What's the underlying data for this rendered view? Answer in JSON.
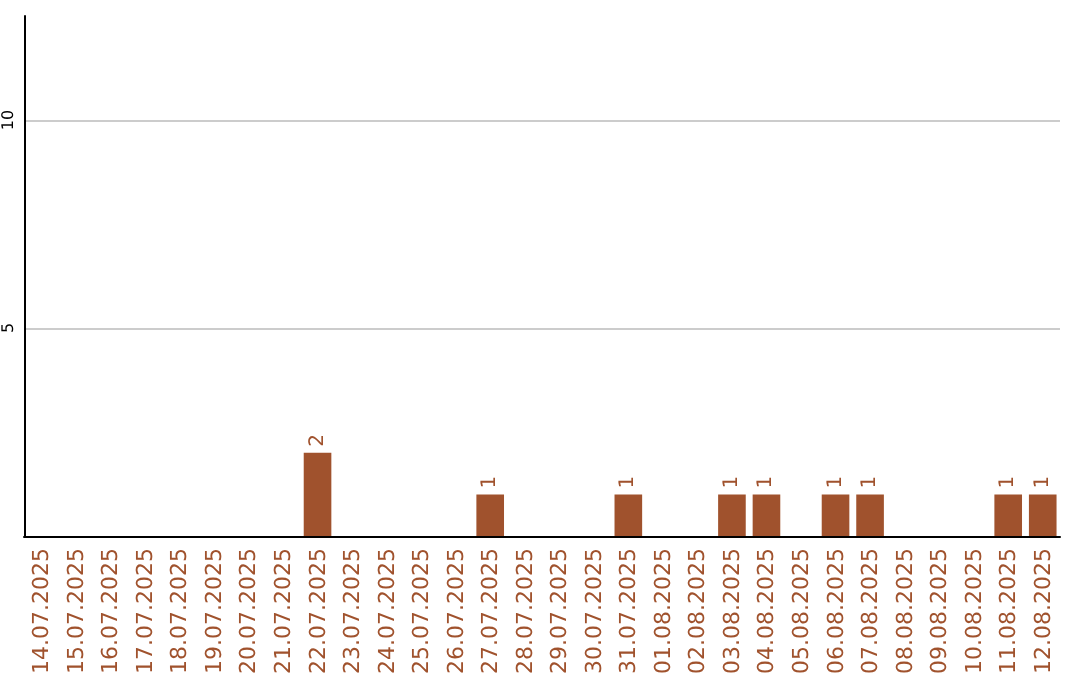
{
  "chart_data": {
    "type": "bar",
    "categories": [
      "14.07.2025",
      "15.07.2025",
      "16.07.2025",
      "17.07.2025",
      "18.07.2025",
      "19.07.2025",
      "20.07.2025",
      "21.07.2025",
      "22.07.2025",
      "23.07.2025",
      "24.07.2025",
      "25.07.2025",
      "26.07.2025",
      "27.07.2025",
      "28.07.2025",
      "29.07.2025",
      "30.07.2025",
      "31.07.2025",
      "01.08.2025",
      "02.08.2025",
      "03.08.2025",
      "04.08.2025",
      "05.08.2025",
      "06.08.2025",
      "07.08.2025",
      "08.08.2025",
      "09.08.2025",
      "10.08.2025",
      "11.08.2025",
      "12.08.2025"
    ],
    "values": [
      0,
      0,
      0,
      0,
      0,
      0,
      0,
      0,
      2,
      0,
      0,
      0,
      0,
      1,
      0,
      0,
      0,
      1,
      0,
      0,
      1,
      1,
      0,
      1,
      1,
      0,
      0,
      0,
      1,
      1
    ],
    "value_labels": [
      null,
      null,
      null,
      null,
      null,
      null,
      null,
      null,
      "2",
      null,
      null,
      null,
      null,
      "1",
      null,
      null,
      null,
      "1",
      null,
      null,
      "1",
      "1",
      null,
      "1",
      "1",
      null,
      null,
      null,
      "1",
      "1"
    ],
    "color": "#a0522d",
    "ylim": [
      0,
      12.5
    ],
    "yticks": [
      5,
      10
    ],
    "grid": "y"
  }
}
